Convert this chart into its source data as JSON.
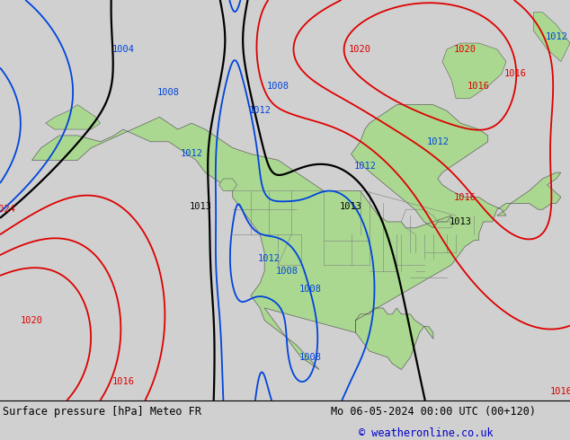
{
  "title_left": "Surface pressure [hPa] Meteo FR",
  "title_right": "Mo 06-05-2024 00:00 UTC (00+120)",
  "copyright": "© weatheronline.co.uk",
  "bg_color": "#d0d0d0",
  "land_color": "#aad890",
  "ocean_color": "#d0d0d0",
  "fig_width": 6.34,
  "fig_height": 4.9,
  "dpi": 100
}
